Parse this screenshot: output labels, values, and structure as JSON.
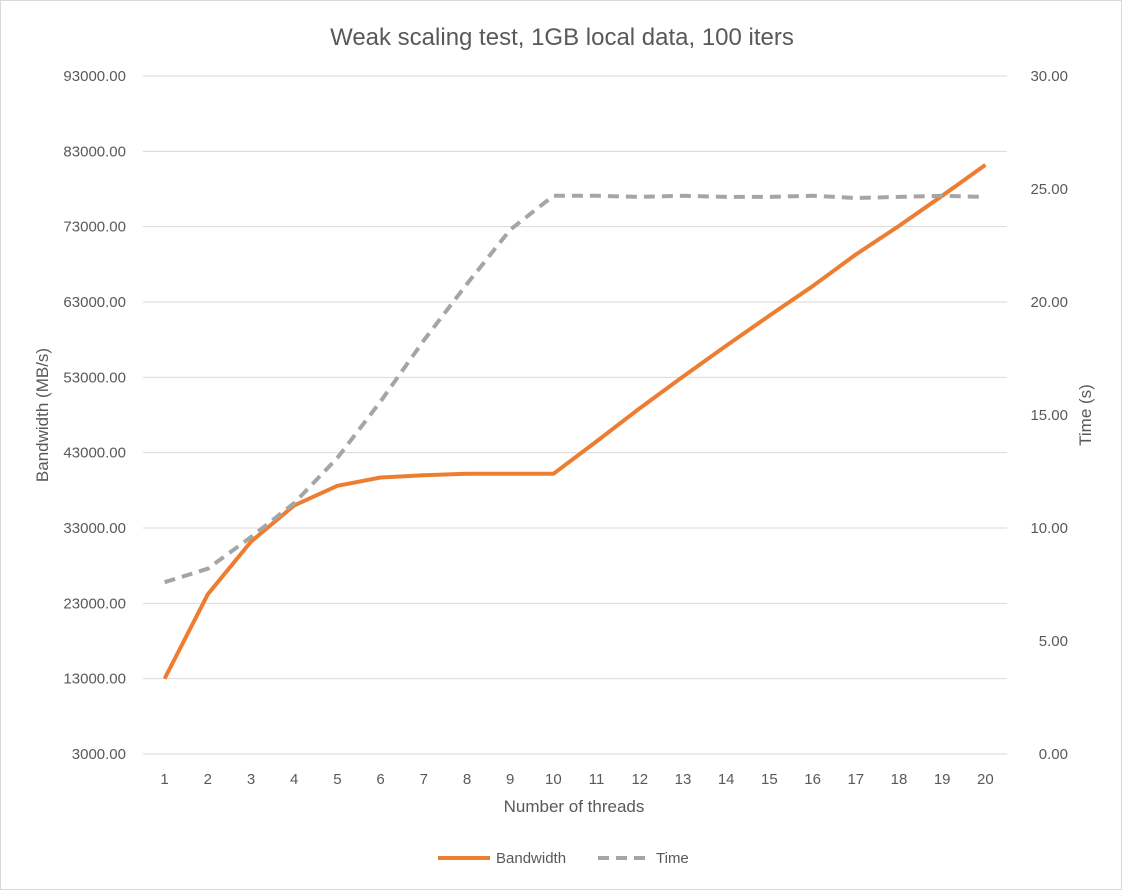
{
  "chart_data": {
    "type": "line",
    "title": "Weak scaling test, 1GB local data, 100 iters",
    "xlabel": "Number of threads",
    "ylabel": "Bandwidth (MB/s)",
    "y2label": "Time  (s)",
    "categories": [
      "1",
      "2",
      "3",
      "4",
      "5",
      "6",
      "7",
      "8",
      "9",
      "10",
      "11",
      "12",
      "13",
      "14",
      "15",
      "16",
      "17",
      "18",
      "19",
      "20"
    ],
    "ylim": [
      3000,
      93000
    ],
    "yticks": [
      "3000.00",
      "13000.00",
      "23000.00",
      "33000.00",
      "43000.00",
      "53000.00",
      "63000.00",
      "73000.00",
      "83000.00",
      "93000.00"
    ],
    "y2lim": [
      0,
      30
    ],
    "y2ticks": [
      "0.00",
      "5.00",
      "10.00",
      "15.00",
      "20.00",
      "25.00",
      "30.00"
    ],
    "grid": true,
    "legend_position": "bottom",
    "series": [
      {
        "name": "Bandwidth",
        "axis": "left",
        "color": "#ED7D31",
        "style": "solid",
        "values": [
          13000,
          24200,
          31200,
          36000,
          38600,
          39700,
          40000,
          40200,
          40200,
          40200,
          44500,
          48900,
          53100,
          57200,
          61200,
          65100,
          69300,
          73100,
          77100,
          81200
        ]
      },
      {
        "name": "Time",
        "axis": "right",
        "color": "#A5A5A5",
        "style": "dashed",
        "values": [
          7.6,
          8.2,
          9.6,
          11.1,
          13.1,
          15.6,
          18.3,
          20.8,
          23.2,
          24.7,
          24.7,
          24.65,
          24.7,
          24.65,
          24.65,
          24.7,
          24.6,
          24.65,
          24.7,
          24.65
        ]
      }
    ]
  }
}
